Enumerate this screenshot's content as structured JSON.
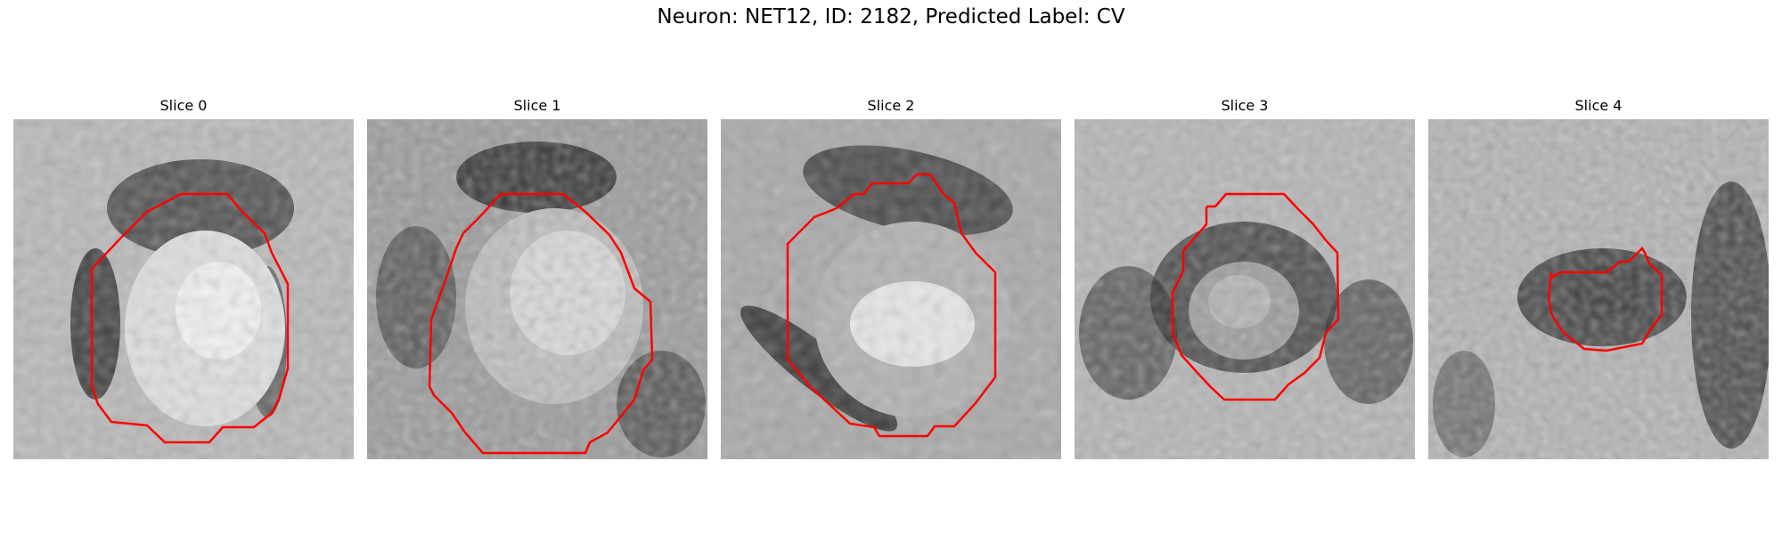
{
  "figure": {
    "title": "Neuron: NET12, ID: 2182, Predicted Label: CV"
  },
  "panels": [
    {
      "title": "Slice 0"
    },
    {
      "title": "Slice 1"
    },
    {
      "title": "Slice 2"
    },
    {
      "title": "Slice 3"
    },
    {
      "title": "Slice 4"
    }
  ],
  "colors": {
    "contour": "#ff0000",
    "background": "#ffffff"
  }
}
